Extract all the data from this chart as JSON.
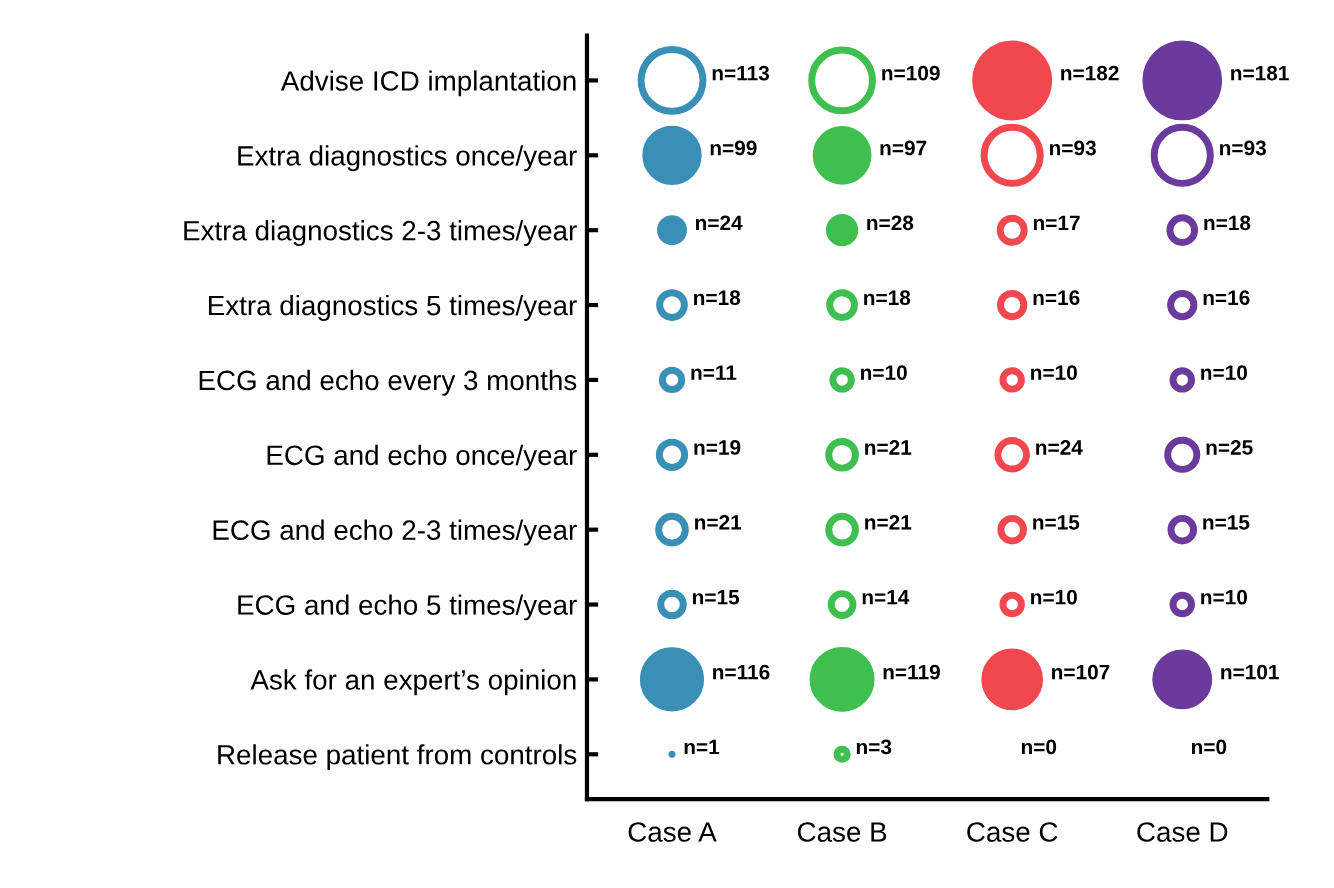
{
  "chart_data": {
    "type": "heatmap",
    "categories": [
      "Case A",
      "Case B",
      "Case C",
      "Case D"
    ],
    "y_categories": [
      "Advise ICD implantation",
      "Extra diagnostics once/year",
      "Extra diagnostics 2-3 times/year",
      "Extra diagnostics 5 times/year",
      "ECG and echo every 3 months",
      "ECG and echo once/year",
      "ECG and echo 2-3 times/year",
      "ECG and echo 5 times/year",
      "Ask for an expert’s opinion",
      "Release patient from controls"
    ],
    "cells": [
      [
        113,
        109,
        182,
        181
      ],
      [
        99,
        97,
        93,
        93
      ],
      [
        24,
        28,
        17,
        18
      ],
      [
        18,
        18,
        16,
        16
      ],
      [
        11,
        10,
        10,
        10
      ],
      [
        19,
        21,
        24,
        25
      ],
      [
        21,
        21,
        15,
        15
      ],
      [
        15,
        14,
        10,
        10
      ],
      [
        116,
        119,
        107,
        101
      ],
      [
        1,
        3,
        0,
        0
      ]
    ],
    "cell_labels": [
      [
        "n=113",
        "n=109",
        "n=182",
        "n=181"
      ],
      [
        "n=99",
        "n=97",
        "n=93",
        "n=93"
      ],
      [
        "n=24",
        "n=28",
        "n=17",
        "n=18"
      ],
      [
        "n=18",
        "n=18",
        "n=16",
        "n=16"
      ],
      [
        "n=11",
        "n=10",
        "n=10",
        "n=10"
      ],
      [
        "n=19",
        "n=21",
        "n=24",
        "n=25"
      ],
      [
        "n=21",
        "n=21",
        "n=15",
        "n=15"
      ],
      [
        "n=15",
        "n=14",
        "n=10",
        "n=10"
      ],
      [
        "n=116",
        "n=119",
        "n=107",
        "n=101"
      ],
      [
        "n=1",
        "n=3",
        "n=0",
        "n=0"
      ]
    ],
    "colors": [
      [
        "#ffffff",
        "#ffffff",
        "#f0484e",
        "#6a3a9c"
      ],
      [
        "#3a8fb7",
        "#3fbf4f",
        "#ffffff",
        "#ffffff"
      ],
      [
        "#3a8fb7",
        "#3fbf4f",
        "#ffffff",
        "#ffffff"
      ],
      [
        "#ffffff",
        "#ffffff",
        "#ffffff",
        "#ffffff"
      ],
      [
        "#ffffff",
        "#ffffff",
        "#ffffff",
        "#ffffff"
      ],
      [
        "#ffffff",
        "#ffffff",
        "#ffffff",
        "#ffffff"
      ],
      [
        "#ffffff",
        "#ffffff",
        "#ffffff",
        "#ffffff"
      ],
      [
        "#ffffff",
        "#ffffff",
        "#ffffff",
        "#ffffff"
      ],
      [
        "#3a8fb7",
        "#3fbf4f",
        "#f0484e",
        "#6a3a9c"
      ],
      [
        "#3a8fb7",
        "#ffffff",
        "#ffffff",
        "#ffffff"
      ]
    ]
  }
}
